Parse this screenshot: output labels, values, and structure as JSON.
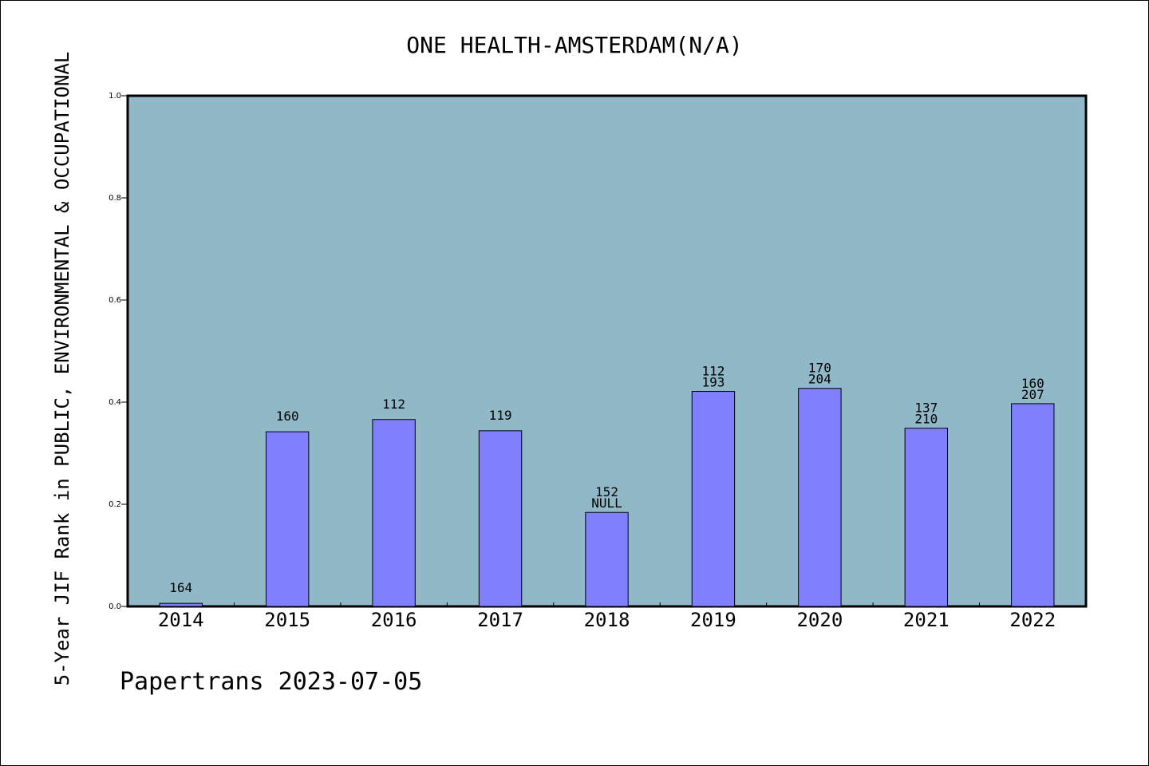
{
  "chart_data": {
    "type": "bar",
    "title": "ONE HEALTH-AMSTERDAM(N/A)",
    "ylabel": "5-Year JIF Rank in PUBLIC, ENVIRONMENTAL & OCCUPATIONAL",
    "xlabel": "",
    "categories": [
      "2014",
      "2015",
      "2016",
      "2017",
      "2018",
      "2019",
      "2020",
      "2021",
      "2022"
    ],
    "values": [
      0.006,
      0.342,
      0.366,
      0.344,
      0.184,
      0.421,
      0.427,
      0.349,
      0.397
    ],
    "bar_labels": [
      [
        "164"
      ],
      [
        "160"
      ],
      [
        "112"
      ],
      [
        "119"
      ],
      [
        "152",
        "NULL"
      ],
      [
        "112",
        "193"
      ],
      [
        "170",
        "204"
      ],
      [
        "137",
        "210"
      ],
      [
        "160",
        "207"
      ]
    ],
    "ylim": [
      0,
      1.0
    ],
    "yticks": [
      "0.0",
      "0.2",
      "0.4",
      "0.6",
      "0.8",
      "1.0"
    ],
    "grid": false,
    "colors": {
      "plot_background": "#90b8c6",
      "bar_fill": "#8080ff",
      "bar_stroke": "#000000"
    }
  },
  "footer": "Papertrans 2023-07-05"
}
